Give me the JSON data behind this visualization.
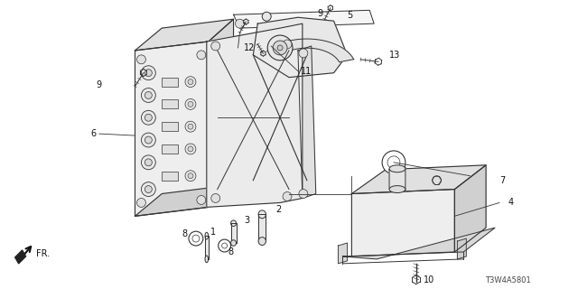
{
  "background_color": "#ffffff",
  "diagram_code": "T3W4A5801",
  "fig_width": 6.4,
  "fig_height": 3.2,
  "dpi": 100,
  "line_color": "#333333",
  "fill_light": "#f0f0f0",
  "fill_mid": "#e0e0e0",
  "fill_dark": "#c8c8c8"
}
